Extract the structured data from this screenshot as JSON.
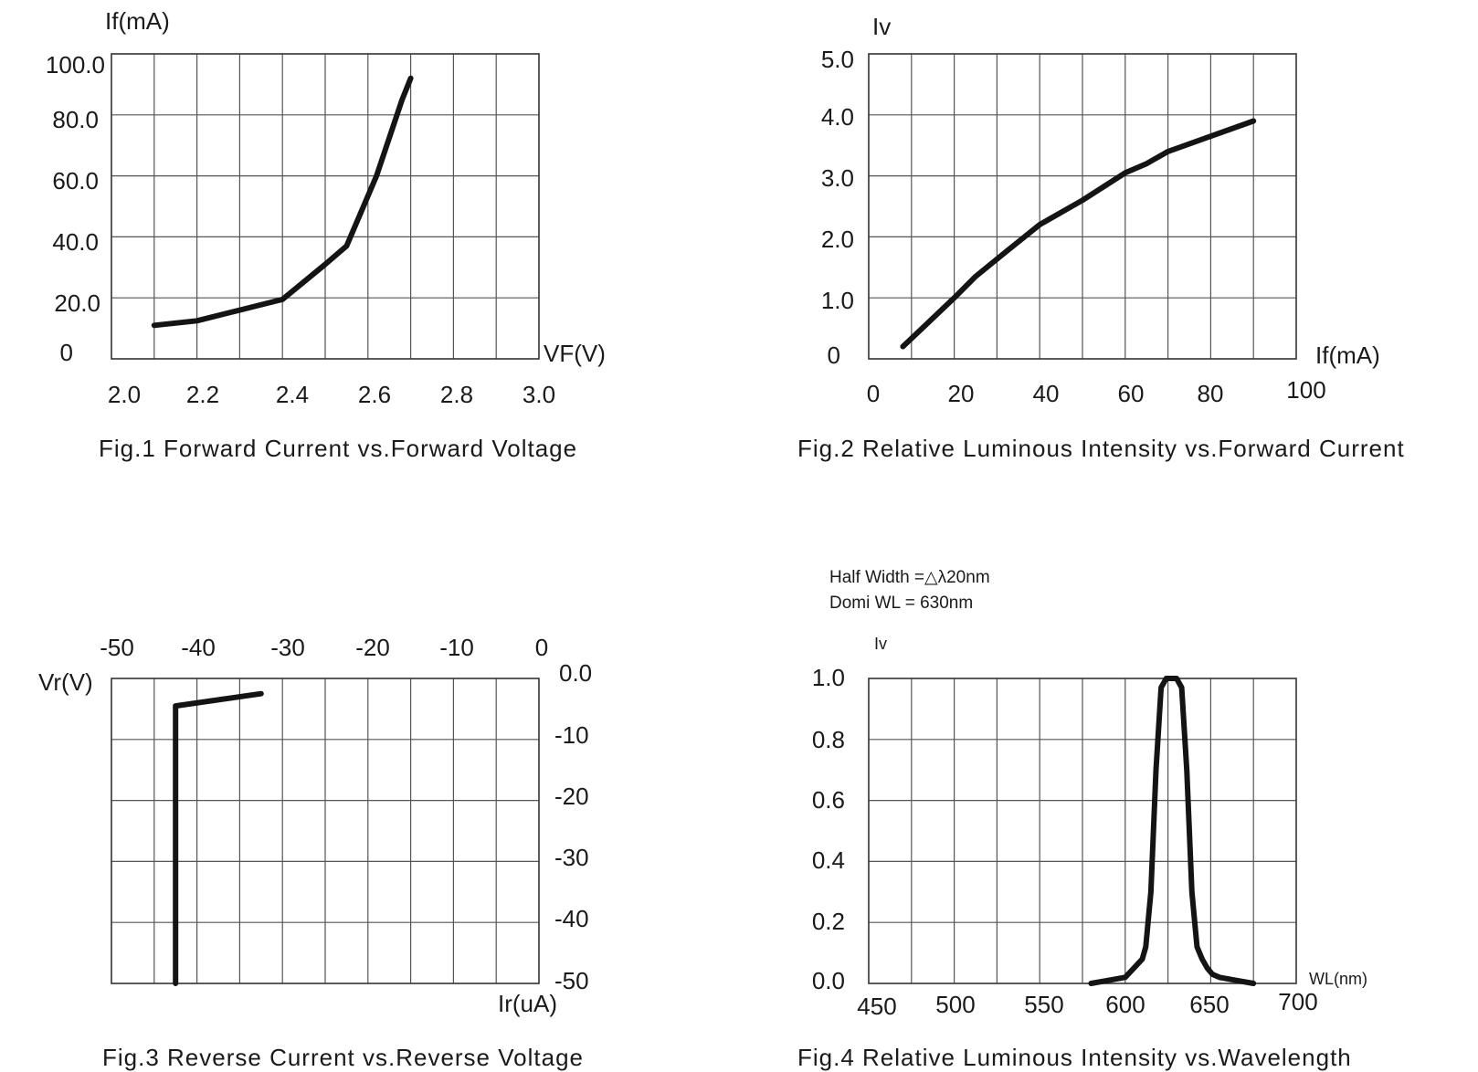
{
  "chart_data": [
    {
      "type": "line",
      "caption": "Fig.1 Forward Current vs.Forward Voltage",
      "xlabel": "VF(V)",
      "ylabel": "If(mA)",
      "xlim": [
        2.0,
        3.0
      ],
      "ylim": [
        0,
        100
      ],
      "x_tick_labels": [
        "2.0",
        "2.2",
        "2.4",
        "2.6",
        "2.8",
        "3.0"
      ],
      "y_tick_labels": [
        "0",
        "20.0",
        "40.0",
        "60.0",
        "80.0",
        "100.0"
      ],
      "grid": true,
      "series": [
        {
          "name": "If",
          "x": [
            2.1,
            2.2,
            2.3,
            2.4,
            2.5,
            2.55,
            2.62,
            2.68,
            2.7
          ],
          "y": [
            11,
            12.5,
            16,
            19.5,
            31,
            37,
            60,
            85,
            92
          ]
        }
      ]
    },
    {
      "type": "line",
      "caption": "Fig.2 Relative Luminous Intensity vs.Forward Current",
      "xlabel": "If(mA)",
      "ylabel": "Iv",
      "xlim": [
        0,
        100
      ],
      "ylim": [
        0,
        5
      ],
      "x_tick_labels": [
        "0",
        "20",
        "40",
        "60",
        "80",
        "100"
      ],
      "y_tick_labels": [
        "0",
        "1.0",
        "2.0",
        "3.0",
        "4.0",
        "5.0"
      ],
      "grid": true,
      "series": [
        {
          "name": "Iv",
          "x": [
            8,
            14,
            20,
            25,
            32,
            40,
            50,
            60,
            65,
            70,
            80,
            90
          ],
          "y": [
            0.2,
            0.6,
            1.0,
            1.35,
            1.75,
            2.2,
            2.6,
            3.05,
            3.2,
            3.4,
            3.65,
            3.9
          ]
        }
      ]
    },
    {
      "type": "line",
      "caption": "Fig.3 Reverse Current vs.Reverse Voltage",
      "xlabel": "Ir(uA)",
      "ylabel": "Vr(V)",
      "xlim": [
        -50,
        0
      ],
      "ylim": [
        -50,
        0
      ],
      "x_tick_labels": [
        "-50",
        "-40",
        "-30",
        "-20",
        "-10",
        "0"
      ],
      "y_tick_labels": [
        "-50",
        "-40",
        "-30",
        "-20",
        "-10",
        "0.0"
      ],
      "grid": true,
      "series": [
        {
          "name": "Vr",
          "x": [
            -42.5,
            -42.5,
            -32.5
          ],
          "y": [
            -50,
            -4.5,
            -2.5
          ]
        }
      ]
    },
    {
      "type": "line",
      "caption": "Fig.4 Relative Luminous Intensity vs.Wavelength",
      "xlabel": "WL(nm)",
      "ylabel": "Iv",
      "xlim": [
        450,
        700
      ],
      "ylim": [
        0,
        1.0
      ],
      "x_tick_labels": [
        "450",
        "500",
        "550",
        "600",
        "650",
        "700"
      ],
      "y_tick_labels": [
        "0.0",
        "0.2",
        "0.4",
        "0.6",
        "0.8",
        "1.0"
      ],
      "grid": true,
      "annotations": [
        "Half Width =△λ20nm",
        "Domi WL = 630nm"
      ],
      "series": [
        {
          "name": "Iv",
          "x": [
            580,
            590,
            600,
            605,
            610,
            612,
            615,
            618,
            621,
            624,
            627,
            630,
            633,
            636,
            639,
            642,
            645,
            648,
            651,
            655,
            665,
            675
          ],
          "y": [
            0.0,
            0.01,
            0.02,
            0.05,
            0.08,
            0.12,
            0.3,
            0.7,
            0.97,
            1.0,
            1.0,
            1.0,
            0.97,
            0.7,
            0.3,
            0.12,
            0.08,
            0.05,
            0.03,
            0.02,
            0.01,
            0.0
          ]
        }
      ]
    }
  ]
}
